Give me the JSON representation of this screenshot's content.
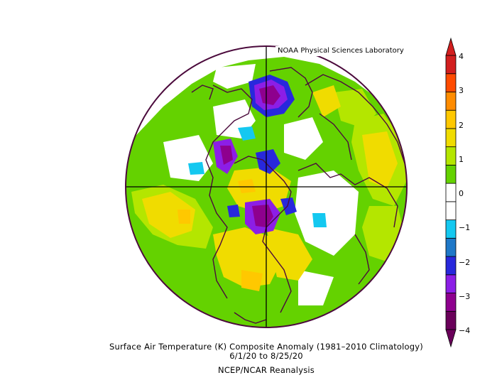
{
  "credit": "NOAA Physical Sciences Laboratory",
  "caption": {
    "line1": "Surface Air Temperature (K) Composite Anomaly (1981–2010 Climatology)",
    "line2": "6/1/20  to 8/25/20",
    "line3": "NCEP/NCAR Reanalysis"
  },
  "colorbar": {
    "labels": [
      "4",
      "3",
      "2",
      "1",
      "0",
      "−1",
      "−2",
      "−3",
      "−4"
    ],
    "bins": [
      {
        "color": "#6a005a"
      },
      {
        "color": "#8e008e"
      },
      {
        "color": "#8c1ee6"
      },
      {
        "color": "#2828dc"
      },
      {
        "color": "#1e78c8"
      },
      {
        "color": "#14c8f0"
      },
      {
        "color": "#ffffff"
      },
      {
        "color": "#ffffff"
      },
      {
        "color": "#64d200"
      },
      {
        "color": "#b4e600"
      },
      {
        "color": "#f0dc00"
      },
      {
        "color": "#ffc800"
      },
      {
        "color": "#ff8c00"
      },
      {
        "color": "#ff4b00"
      },
      {
        "color": "#d21e1e"
      }
    ]
  },
  "colors": {
    "coastline": "#4b0a3c",
    "green": "#64d200",
    "lightgreen": "#b4e600",
    "yellow": "#f0dc00",
    "orange": "#ffc800",
    "purple": "#8e008e",
    "violet": "#8c1ee6",
    "blue": "#2828dc",
    "cyan": "#14c8f0"
  }
}
